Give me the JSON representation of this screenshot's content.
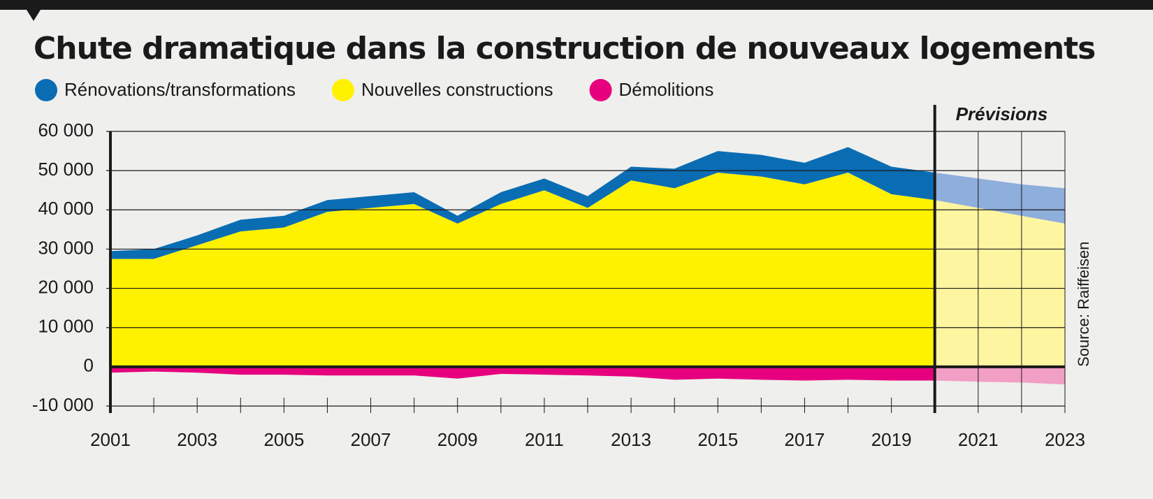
{
  "chart_data": {
    "type": "stacked-area",
    "title": "Chute dramatique dans la construction de nouveaux logements",
    "forecast_label": "Prévisions",
    "forecast_start": 2020,
    "source": "Source: Raiffeisen",
    "x": [
      2001,
      2002,
      2003,
      2004,
      2005,
      2006,
      2007,
      2008,
      2009,
      2010,
      2011,
      2012,
      2013,
      2014,
      2015,
      2016,
      2017,
      2018,
      2019,
      2020,
      2021,
      2022,
      2023
    ],
    "series": [
      {
        "name": "Rénovations/transformations",
        "color": "#0a6db4",
        "forecast_color": "#8eaedb",
        "values": [
          2000,
          2500,
          2500,
          3000,
          3000,
          3000,
          3000,
          3000,
          2000,
          3000,
          3000,
          3000,
          3500,
          5000,
          5500,
          5500,
          5500,
          6500,
          7000,
          7000,
          7500,
          8000,
          9000
        ]
      },
      {
        "name": "Nouvelles constructions",
        "color": "#fff200",
        "forecast_color": "#fdf5a0",
        "values": [
          27500,
          27500,
          31000,
          34500,
          35500,
          39500,
          40500,
          41500,
          36500,
          41500,
          45000,
          40500,
          47500,
          45500,
          49500,
          48500,
          46500,
          49500,
          44000,
          42500,
          40500,
          38500,
          36500
        ]
      },
      {
        "name": "Démolitions",
        "color": "#e6007e",
        "forecast_color": "#f29fc5",
        "values": [
          -1500,
          -1200,
          -1500,
          -2000,
          -2000,
          -2200,
          -2200,
          -2200,
          -3000,
          -1800,
          -2000,
          -2200,
          -2500,
          -3300,
          -3000,
          -3300,
          -3500,
          -3300,
          -3500,
          -3500,
          -3800,
          -4000,
          -4500
        ]
      }
    ],
    "xlim": [
      2001,
      2023
    ],
    "xticks": [
      2001,
      2003,
      2005,
      2007,
      2009,
      2011,
      2013,
      2015,
      2017,
      2019,
      2021,
      2023
    ],
    "ylim": [
      -10000,
      60000
    ],
    "yticks": [
      {
        "value": -10000,
        "label": "-10 000"
      },
      0,
      {
        "value": 10000,
        "label": "10 000"
      },
      {
        "value": 20000,
        "label": "20 000"
      },
      {
        "value": 30000,
        "label": "30 000"
      },
      {
        "value": 40000,
        "label": "40 000"
      },
      {
        "value": 50000,
        "label": "50 000"
      },
      {
        "value": 60000,
        "label": "60 000"
      }
    ],
    "grid": true
  }
}
